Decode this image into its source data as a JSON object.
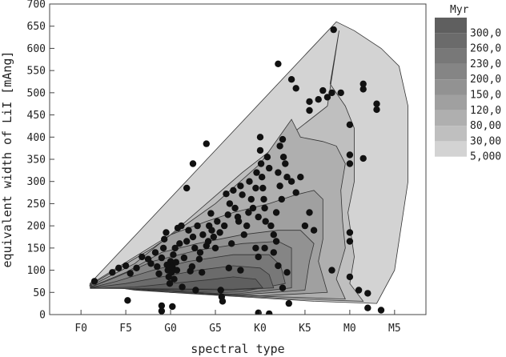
{
  "chart_data": {
    "type": "scatter",
    "title": "",
    "xlabel": "spectral type",
    "ylabel": "equivalent width of LiI [mAng]",
    "x_tick_labels": [
      "F0",
      "F5",
      "G0",
      "G5",
      "K0",
      "K5",
      "M0",
      "M5"
    ],
    "x_tick_positions": [
      0,
      5,
      10,
      15,
      20,
      25,
      30,
      35
    ],
    "xlim": [
      -3.5,
      38.5
    ],
    "ylim": [
      0,
      700
    ],
    "y_ticks": [
      0,
      50,
      100,
      150,
      200,
      250,
      300,
      350,
      400,
      450,
      500,
      550,
      600,
      650,
      700
    ],
    "legend": {
      "title": "Myr",
      "position": "right",
      "entries": [
        "300,0",
        "260,0",
        "230,0",
        "200,0",
        "150,0",
        "120,0",
        "80,00",
        "30,00",
        "5,000"
      ],
      "colors": [
        "#5f5f5f",
        "#6b6b6b",
        "#787878",
        "#858585",
        "#929292",
        "#a0a0a0",
        "#afafaf",
        "#bfbfbf",
        "#d3d3d3"
      ]
    },
    "contour_fill_colors": [
      "#d3d3d3",
      "#bfbfbf",
      "#afafaf",
      "#a0a0a0",
      "#929292",
      "#858585",
      "#787878",
      "#6b6b6b",
      "#5f5f5f"
    ],
    "points": [
      {
        "x": 1.5,
        "y": 75
      },
      {
        "x": 3.5,
        "y": 95
      },
      {
        "x": 4.2,
        "y": 105
      },
      {
        "x": 5,
        "y": 110
      },
      {
        "x": 5.5,
        "y": 93
      },
      {
        "x": 5.2,
        "y": 32
      },
      {
        "x": 6.2,
        "y": 105
      },
      {
        "x": 6.8,
        "y": 130
      },
      {
        "x": 7.5,
        "y": 125
      },
      {
        "x": 7.8,
        "y": 115
      },
      {
        "x": 8.3,
        "y": 140
      },
      {
        "x": 8.5,
        "y": 108
      },
      {
        "x": 8.7,
        "y": 92
      },
      {
        "x": 9.0,
        "y": 128
      },
      {
        "x": 9.2,
        "y": 150
      },
      {
        "x": 9.3,
        "y": 170
      },
      {
        "x": 9.5,
        "y": 185
      },
      {
        "x": 9.6,
        "y": 112
      },
      {
        "x": 9.7,
        "y": 100
      },
      {
        "x": 9.8,
        "y": 85
      },
      {
        "x": 9.9,
        "y": 70
      },
      {
        "x": 10.0,
        "y": 120
      },
      {
        "x": 10.1,
        "y": 95
      },
      {
        "x": 10.2,
        "y": 108
      },
      {
        "x": 10.3,
        "y": 135
      },
      {
        "x": 10.4,
        "y": 80
      },
      {
        "x": 10.5,
        "y": 150
      },
      {
        "x": 10.6,
        "y": 118
      },
      {
        "x": 10.7,
        "y": 100
      },
      {
        "x": 10.8,
        "y": 195
      },
      {
        "x": 11.0,
        "y": 160
      },
      {
        "x": 11.2,
        "y": 200
      },
      {
        "x": 11.3,
        "y": 62
      },
      {
        "x": 11.5,
        "y": 128
      },
      {
        "x": 11.8,
        "y": 165
      },
      {
        "x": 12.0,
        "y": 190
      },
      {
        "x": 12.2,
        "y": 98
      },
      {
        "x": 12.4,
        "y": 108
      },
      {
        "x": 12.5,
        "y": 175
      },
      {
        "x": 12.7,
        "y": 150
      },
      {
        "x": 12.8,
        "y": 55
      },
      {
        "x": 13.0,
        "y": 200
      },
      {
        "x": 13.2,
        "y": 125
      },
      {
        "x": 13.3,
        "y": 140
      },
      {
        "x": 13.5,
        "y": 95
      },
      {
        "x": 13.6,
        "y": 180
      },
      {
        "x": 14.0,
        "y": 155
      },
      {
        "x": 14.2,
        "y": 165
      },
      {
        "x": 14.3,
        "y": 200
      },
      {
        "x": 14.5,
        "y": 228
      },
      {
        "x": 14.6,
        "y": 190
      },
      {
        "x": 14.8,
        "y": 175
      },
      {
        "x": 15.0,
        "y": 150
      },
      {
        "x": 15.2,
        "y": 210
      },
      {
        "x": 15.5,
        "y": 185
      },
      {
        "x": 15.6,
        "y": 55
      },
      {
        "x": 15.7,
        "y": 40
      },
      {
        "x": 15.8,
        "y": 30
      },
      {
        "x": 16.0,
        "y": 200
      },
      {
        "x": 16.2,
        "y": 272
      },
      {
        "x": 16.4,
        "y": 225
      },
      {
        "x": 16.6,
        "y": 250
      },
      {
        "x": 16.8,
        "y": 160
      },
      {
        "x": 17.0,
        "y": 280
      },
      {
        "x": 17.2,
        "y": 240
      },
      {
        "x": 17.5,
        "y": 220
      },
      {
        "x": 17.6,
        "y": 210
      },
      {
        "x": 17.8,
        "y": 290
      },
      {
        "x": 18.0,
        "y": 270
      },
      {
        "x": 18.2,
        "y": 180
      },
      {
        "x": 18.5,
        "y": 200
      },
      {
        "x": 18.7,
        "y": 230
      },
      {
        "x": 18.8,
        "y": 300
      },
      {
        "x": 19.0,
        "y": 260
      },
      {
        "x": 19.2,
        "y": 240
      },
      {
        "x": 19.5,
        "y": 285
      },
      {
        "x": 19.6,
        "y": 320
      },
      {
        "x": 19.8,
        "y": 220
      },
      {
        "x": 20.0,
        "y": 400
      },
      {
        "x": 20.0,
        "y": 370
      },
      {
        "x": 20.1,
        "y": 340
      },
      {
        "x": 20.2,
        "y": 310
      },
      {
        "x": 20.3,
        "y": 285
      },
      {
        "x": 20.4,
        "y": 260
      },
      {
        "x": 20.5,
        "y": 240
      },
      {
        "x": 20.6,
        "y": 210
      },
      {
        "x": 20.8,
        "y": 355
      },
      {
        "x": 21.0,
        "y": 330
      },
      {
        "x": 21.2,
        "y": 200
      },
      {
        "x": 21.5,
        "y": 180
      },
      {
        "x": 21.8,
        "y": 230
      },
      {
        "x": 22.0,
        "y": 320
      },
      {
        "x": 22.2,
        "y": 290
      },
      {
        "x": 22.4,
        "y": 260
      },
      {
        "x": 22.6,
        "y": 355
      },
      {
        "x": 22.8,
        "y": 340
      },
      {
        "x": 23.0,
        "y": 310
      },
      {
        "x": 23.5,
        "y": 300
      },
      {
        "x": 24.0,
        "y": 275
      },
      {
        "x": 24.5,
        "y": 310
      },
      {
        "x": 25.0,
        "y": 200
      },
      {
        "x": 25.5,
        "y": 230
      },
      {
        "x": 26.0,
        "y": 190
      },
      {
        "x": 21.5,
        "y": 140
      },
      {
        "x": 22.0,
        "y": 110
      },
      {
        "x": 22.5,
        "y": 60
      },
      {
        "x": 23.0,
        "y": 95
      },
      {
        "x": 23.2,
        "y": 25
      },
      {
        "x": 19.5,
        "y": 150
      },
      {
        "x": 19.8,
        "y": 130
      },
      {
        "x": 17.8,
        "y": 100
      },
      {
        "x": 16.5,
        "y": 105
      },
      {
        "x": 20.5,
        "y": 150
      },
      {
        "x": 21.8,
        "y": 165
      },
      {
        "x": 22.2,
        "y": 380
      },
      {
        "x": 22.5,
        "y": 395
      },
      {
        "x": 23.5,
        "y": 530
      },
      {
        "x": 22.0,
        "y": 565
      },
      {
        "x": 24.0,
        "y": 510
      },
      {
        "x": 25.5,
        "y": 460
      },
      {
        "x": 25.5,
        "y": 480
      },
      {
        "x": 27.5,
        "y": 490
      },
      {
        "x": 28.0,
        "y": 500
      },
      {
        "x": 28.2,
        "y": 642
      },
      {
        "x": 27.0,
        "y": 505
      },
      {
        "x": 29.0,
        "y": 500
      },
      {
        "x": 26.5,
        "y": 485
      },
      {
        "x": 31.5,
        "y": 520
      },
      {
        "x": 31.5,
        "y": 508
      },
      {
        "x": 33.0,
        "y": 475
      },
      {
        "x": 33.0,
        "y": 462
      },
      {
        "x": 30.0,
        "y": 428
      },
      {
        "x": 30.0,
        "y": 360
      },
      {
        "x": 30.0,
        "y": 340
      },
      {
        "x": 31.5,
        "y": 352
      },
      {
        "x": 30.0,
        "y": 185
      },
      {
        "x": 30.0,
        "y": 165
      },
      {
        "x": 30.0,
        "y": 85
      },
      {
        "x": 31.0,
        "y": 55
      },
      {
        "x": 28.0,
        "y": 100
      },
      {
        "x": 32.0,
        "y": 48
      },
      {
        "x": 32.0,
        "y": 15
      },
      {
        "x": 33.5,
        "y": 10
      },
      {
        "x": 14.0,
        "y": 385
      },
      {
        "x": 12.5,
        "y": 340
      },
      {
        "x": 11.8,
        "y": 285
      },
      {
        "x": 9.0,
        "y": 20
      },
      {
        "x": 10.2,
        "y": 18
      },
      {
        "x": 9.0,
        "y": 8
      },
      {
        "x": 19.8,
        "y": 4
      },
      {
        "x": 21.0,
        "y": 2
      }
    ]
  }
}
